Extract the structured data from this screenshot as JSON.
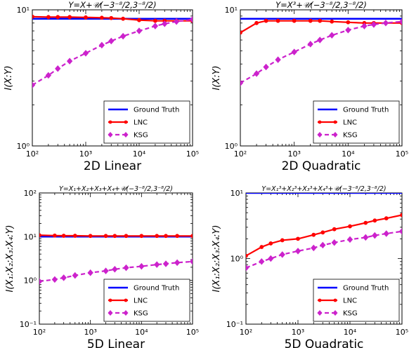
{
  "chart_data": [
    {
      "type": "line",
      "title": "Y=X+𝒰(−3⁻⁸/2,3⁻⁸/2)",
      "xlabel": "2D Linear",
      "ylabel": "I(X:Y)",
      "xscale": "log",
      "yscale": "log",
      "xlim": [
        100,
        100000
      ],
      "ylim": [
        1,
        10
      ],
      "x_tick_labels": [
        "10²",
        "10³",
        "10⁴",
        "10⁵"
      ],
      "y_tick_labels": [
        "10⁰",
        "10¹"
      ],
      "legend_position": "lower-right",
      "x": [
        100,
        200,
        300,
        500,
        1000,
        2000,
        3000,
        5000,
        10000,
        20000,
        30000,
        50000,
        100000
      ],
      "series": [
        {
          "name": "Ground Truth",
          "color": "#0000ff",
          "style": "solid",
          "marker": "none",
          "values": [
            8.6,
            8.6,
            8.6,
            8.6,
            8.6,
            8.6,
            8.6,
            8.6,
            8.6,
            8.6,
            8.6,
            8.6,
            8.6
          ]
        },
        {
          "name": "LNC",
          "color": "#ff0000",
          "style": "solid",
          "marker": "circle",
          "values": [
            8.9,
            8.85,
            8.85,
            8.85,
            8.8,
            8.75,
            8.7,
            8.6,
            8.4,
            8.3,
            8.3,
            8.3,
            8.3
          ]
        },
        {
          "name": "KSG",
          "color": "#cc22cc",
          "style": "dashed",
          "marker": "diamond",
          "values": [
            2.8,
            3.3,
            3.7,
            4.2,
            4.8,
            5.5,
            5.9,
            6.4,
            7.0,
            7.6,
            7.9,
            8.2,
            8.5
          ]
        }
      ]
    },
    {
      "type": "line",
      "title": "Y=X³+𝒰(−3⁻⁸/2,3⁻⁸/2)",
      "xlabel": "2D Quadratic",
      "ylabel": "I(X:Y)",
      "xscale": "log",
      "yscale": "log",
      "xlim": [
        100,
        100000
      ],
      "ylim": [
        1,
        10
      ],
      "x_tick_labels": [
        "10²",
        "10³",
        "10⁴",
        "10⁵"
      ],
      "y_tick_labels": [
        "10⁰",
        "10¹"
      ],
      "legend_position": "lower-right",
      "x": [
        100,
        200,
        300,
        500,
        1000,
        2000,
        3000,
        5000,
        10000,
        20000,
        30000,
        50000,
        100000
      ],
      "series": [
        {
          "name": "Ground Truth",
          "color": "#0000ff",
          "style": "solid",
          "marker": "none",
          "values": [
            8.6,
            8.6,
            8.6,
            8.6,
            8.6,
            8.6,
            8.6,
            8.6,
            8.6,
            8.6,
            8.6,
            8.6,
            8.6
          ]
        },
        {
          "name": "LNC",
          "color": "#ff0000",
          "style": "solid",
          "marker": "circle",
          "values": [
            6.8,
            8.0,
            8.3,
            8.3,
            8.3,
            8.3,
            8.3,
            8.2,
            8.1,
            8.0,
            8.0,
            8.0,
            8.0
          ]
        },
        {
          "name": "KSG",
          "color": "#cc22cc",
          "style": "dashed",
          "marker": "diamond",
          "values": [
            2.9,
            3.4,
            3.8,
            4.3,
            4.9,
            5.6,
            6.0,
            6.5,
            7.1,
            7.6,
            7.8,
            8.0,
            8.2
          ]
        }
      ]
    },
    {
      "type": "line",
      "title": "Y=X₁+X₂+X₃+X₄+𝒰(−3⁻⁸/2,3⁻⁸/2)",
      "xlabel": "5D Linear",
      "ylabel": "I(X₁:X₂:X₃:X₄:Y)",
      "xscale": "log",
      "yscale": "log",
      "xlim": [
        100,
        100000
      ],
      "ylim": [
        0.1,
        100
      ],
      "x_tick_labels": [
        "10²",
        "10³",
        "10⁴",
        "10⁵"
      ],
      "y_tick_labels": [
        "10⁻¹",
        "10⁰",
        "10¹",
        "10²"
      ],
      "legend_position": "lower-right",
      "x": [
        100,
        200,
        300,
        500,
        1000,
        2000,
        3000,
        5000,
        10000,
        20000,
        30000,
        50000,
        100000
      ],
      "series": [
        {
          "name": "Ground Truth",
          "color": "#0000ff",
          "style": "solid",
          "marker": "none",
          "values": [
            10,
            10,
            10,
            10,
            10,
            10,
            10,
            10,
            10,
            10,
            10,
            10,
            10
          ]
        },
        {
          "name": "LNC",
          "color": "#ff0000",
          "style": "solid",
          "marker": "circle",
          "values": [
            10.8,
            10.6,
            10.5,
            10.5,
            10.4,
            10.4,
            10.4,
            10.4,
            10.4,
            10.4,
            10.4,
            10.4,
            10.4
          ]
        },
        {
          "name": "KSG",
          "color": "#cc22cc",
          "style": "dashed",
          "marker": "diamond",
          "values": [
            0.95,
            1.05,
            1.15,
            1.3,
            1.5,
            1.65,
            1.8,
            1.95,
            2.1,
            2.3,
            2.4,
            2.55,
            2.7
          ]
        }
      ]
    },
    {
      "type": "line",
      "title": "Y=X₁³+X₂³+X₃³+X₄³+𝒰(−3⁻⁸/2,3⁻⁸/2)",
      "xlabel": "5D Quadratic",
      "ylabel": "I(X₁:X₂:X₃:X₄:Y)",
      "xscale": "log",
      "yscale": "log",
      "xlim": [
        100,
        100000
      ],
      "ylim": [
        0.1,
        10
      ],
      "x_tick_labels": [
        "10²",
        "10³",
        "10⁴",
        "10⁵"
      ],
      "y_tick_labels": [
        "10⁻¹",
        "10⁰",
        "10¹"
      ],
      "legend_position": "lower-right",
      "x": [
        100,
        200,
        300,
        500,
        1000,
        2000,
        3000,
        5000,
        10000,
        20000,
        30000,
        50000,
        100000
      ],
      "series": [
        {
          "name": "Ground Truth",
          "color": "#0000ff",
          "style": "solid",
          "marker": "none",
          "values": [
            10,
            10,
            10,
            10,
            10,
            10,
            10,
            10,
            10,
            10,
            10,
            10,
            10
          ]
        },
        {
          "name": "LNC",
          "color": "#ff0000",
          "style": "solid",
          "marker": "circle",
          "values": [
            1.1,
            1.5,
            1.7,
            1.9,
            2.0,
            2.3,
            2.5,
            2.8,
            3.1,
            3.5,
            3.8,
            4.1,
            4.6
          ]
        },
        {
          "name": "KSG",
          "color": "#cc22cc",
          "style": "dashed",
          "marker": "diamond",
          "values": [
            0.72,
            0.9,
            1.0,
            1.15,
            1.3,
            1.45,
            1.6,
            1.75,
            1.95,
            2.1,
            2.25,
            2.4,
            2.6
          ]
        }
      ]
    }
  ]
}
